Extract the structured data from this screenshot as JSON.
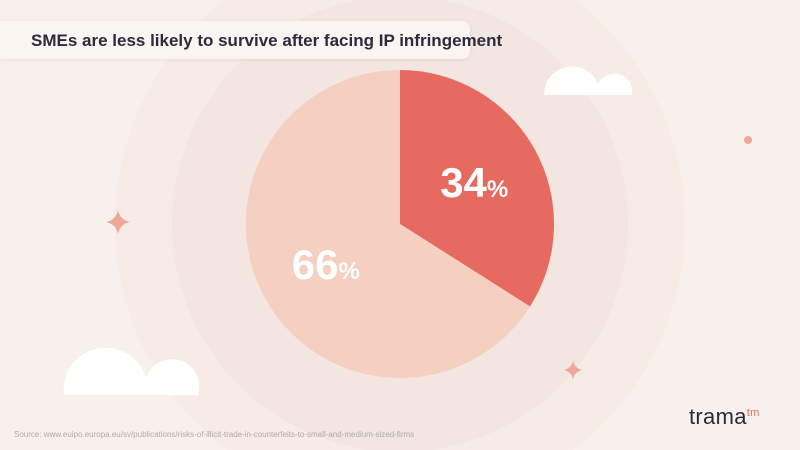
{
  "title": "SMEs are less likely to survive after facing IP infringement",
  "source": "Source: www.euipo.europa.eu/sv/publications/risks-of-illicit-trade-in-counterfeits-to-small-and-medium-sized-firms",
  "logo": {
    "text": "trama",
    "mark": "tm"
  },
  "colors": {
    "slice_primary": "#e76a60",
    "slice_secondary": "#f5cfc0",
    "background": "#f8f0ec",
    "text": "#2a2b3d"
  },
  "chart_data": {
    "type": "pie",
    "title": "SMEs are less likely to survive after facing IP infringement",
    "slices": [
      {
        "value": 34,
        "label": "34",
        "unit": "%",
        "color": "#e76a60"
      },
      {
        "value": 66,
        "label": "66",
        "unit": "%",
        "color": "#f5cfc0"
      }
    ],
    "start": "top",
    "direction": "clockwise"
  }
}
